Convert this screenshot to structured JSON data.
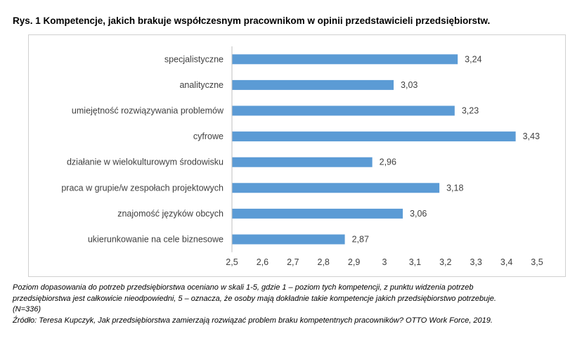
{
  "title": "Rys.  1 Kompetencje, jakich brakuje współczesnym pracownikom w opinii przedstawicieli przedsiębiorstw.",
  "notes": {
    "line1": "Poziom dopasowania do potrzeb przedsiębiorstwa oceniano w skali 1-5, gdzie 1 – poziom  tych kompetencji, z punktu widzenia potrzeb",
    "line2": "przedsiębiorstwa jest całkowicie nieodpowiedni, 5 – oznacza, że osoby mają dokładnie takie kompetencje jakich przedsiębiorstwo potrzebuje.",
    "line3": "(N=336)",
    "line4": "Źródło: Teresa Kupczyk, Jak przedsiębiorstwa zamierzają rozwiązać problem braku kompetentnych pracowników? OTTO Work Force, 2019."
  },
  "chart_data": {
    "type": "bar",
    "orientation": "horizontal",
    "categories": [
      "specjalistyczne",
      "analityczne",
      "umiejętność rozwiązywania problemów",
      "cyfrowe",
      "działanie w wielokulturowym środowisku",
      "praca w grupie/w zespołach projektowych",
      "znajomość języków obcych",
      "ukierunkowanie na cele biznesowe"
    ],
    "values": [
      3.24,
      3.03,
      3.23,
      3.43,
      2.96,
      3.18,
      3.06,
      2.87
    ],
    "value_labels": [
      "3,24",
      "3,03",
      "3,23",
      "3,43",
      "2,96",
      "3,18",
      "3,06",
      "2,87"
    ],
    "xlim": [
      2.5,
      3.5
    ],
    "ticks": [
      "2,5",
      "2,6",
      "2,7",
      "2,8",
      "2,9",
      "3",
      "3,1",
      "3,2",
      "3,3",
      "3,4",
      "3,5"
    ],
    "grid": false,
    "bar_color": "#5b9bd5",
    "axis_color": "#bfbfbf",
    "text_color": "#404040"
  }
}
